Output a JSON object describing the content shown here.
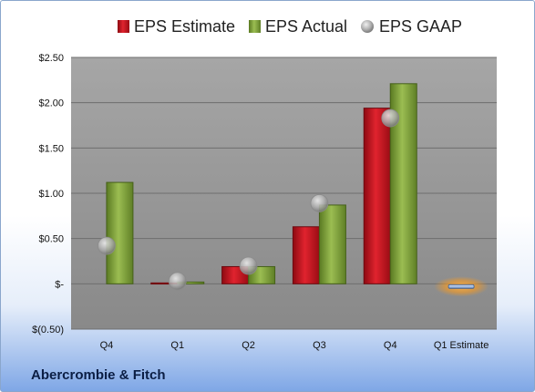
{
  "company": "Abercrombie & Fitch",
  "chart_data": {
    "type": "bar",
    "categories": [
      "Q4",
      "Q1",
      "Q2",
      "Q3",
      "Q4",
      "Q1 Estimate"
    ],
    "series": [
      {
        "name": "EPS Estimate",
        "type": "bar",
        "color": "#c0101e",
        "values": [
          null,
          0.01,
          0.19,
          0.63,
          1.94,
          -0.03
        ]
      },
      {
        "name": "EPS Actual",
        "type": "bar",
        "color": "#7a9a3a",
        "values": [
          1.12,
          0.02,
          0.19,
          0.87,
          2.21,
          null
        ]
      },
      {
        "name": "EPS GAAP",
        "type": "marker",
        "color": "#b8b8b8",
        "values": [
          0.42,
          0.03,
          0.2,
          0.89,
          1.83,
          null
        ]
      }
    ],
    "y_ticks": [
      "$(0.50)",
      "$-",
      "$0.50",
      "$1.00",
      "$1.50",
      "$2.00",
      "$2.50"
    ],
    "ylim": [
      -0.5,
      2.5
    ],
    "grid": true,
    "legend_position": "top",
    "estimate_highlight_color": "#f5a623",
    "plot_background": "#a6a6a6"
  }
}
